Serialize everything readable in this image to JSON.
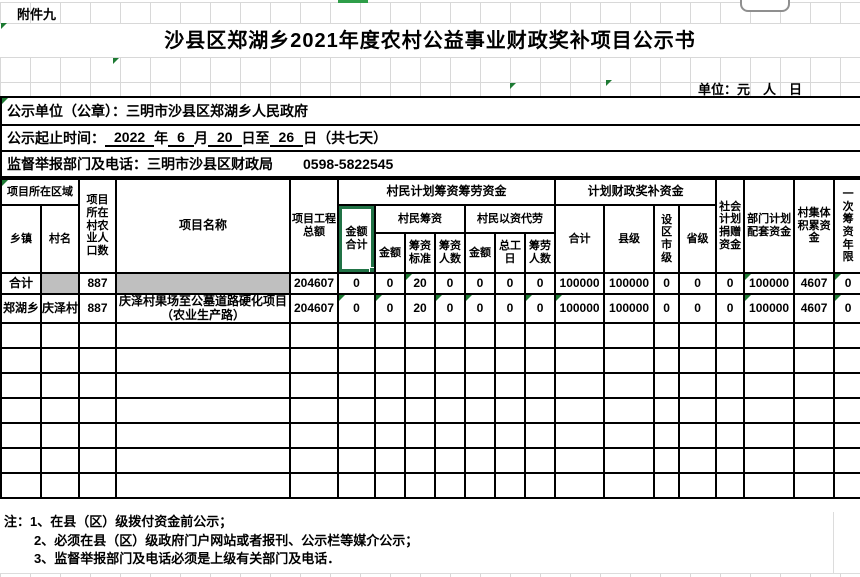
{
  "attachment_label": "附件九",
  "title": "沙县区郑湖乡2021年度农村公益事业财政奖补项目公示书",
  "unit_note": "单位：元　人　日",
  "publicity_unit": {
    "label": "公示单位（公章）：",
    "value": "三明市沙县区郑湖乡人民政府"
  },
  "period": {
    "label": "公示起止时间：",
    "year": "2022",
    "year_suffix": "年",
    "month": "6",
    "month_suffix": "月",
    "day_start": "20",
    "start_suffix": "日至",
    "day_end": "26",
    "end_suffix": "日（共七天）"
  },
  "supervision": {
    "label": "监督举报部门及电话：",
    "department": "三明市沙县区财政局",
    "phone": "0598-5822545"
  },
  "table": {
    "header": {
      "region": "项目所在区域",
      "township": "乡镇",
      "village": "村名",
      "population": "项目所在村农业人口数",
      "project_name": "项目名称",
      "project_total": "项目工程总额",
      "villager_plan": "村民计划筹资筹劳资金",
      "amount_total": "金额合计",
      "villager_fund": "村民筹资",
      "amount": "金额",
      "fund_standard": "筹资标准",
      "fund_people": "筹资人数",
      "labor_convert": "村民以资代劳",
      "labor_days": "总工日",
      "labor_people": "筹劳人数",
      "fiscal_award": "计划财政奖补资金",
      "fiscal_total": "合计",
      "county": "县级",
      "city": "设区市级",
      "province": "省级",
      "social_donation": "社会计划捐赠资金",
      "dept_matching": "部门计划配套资金",
      "village_collective": "村集体积累资金",
      "once_years": "一次筹资年限"
    },
    "rows": [
      {
        "cells": [
          "合计",
          "",
          "887",
          "",
          "204607",
          "0",
          "0",
          "20",
          "0",
          "0",
          "0",
          "0",
          "100000",
          "100000",
          "0",
          "0",
          "0",
          "100000",
          "4607",
          "0"
        ]
      },
      {
        "cells": [
          "郑湖乡",
          "庆泽村",
          "887",
          "庆泽村果场至公墓道路硬化项目（农业生产路）",
          "204607",
          "0",
          "0",
          "20",
          "0",
          "0",
          "0",
          "0",
          "100000",
          "100000",
          "0",
          "0",
          "0",
          "100000",
          "4607",
          "0"
        ]
      }
    ]
  },
  "notes": {
    "prefix": "注：",
    "items": [
      "1、在县（区）级拨付资金前公示；",
      "2、必须在县（区）级政府门户网站或者报刊、公示栏等媒介公示；",
      "3、监督举报部门及电话必须是上级有关部门及电话．"
    ]
  },
  "colors": {
    "selection_green": "#217346",
    "indicator_green": "#1d7a33",
    "gray_fill": "#bfbfbf",
    "grid_gray": "#d8d8d8"
  }
}
